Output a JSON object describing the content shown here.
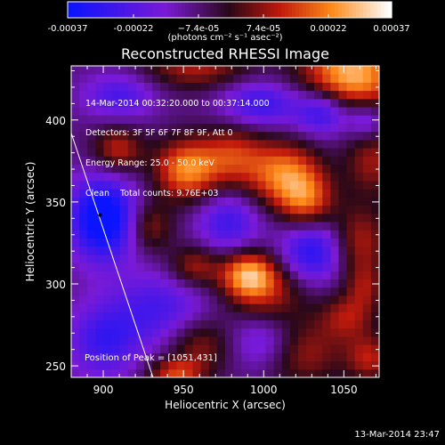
{
  "colorbar": {
    "tick_labels": [
      "-0.00037",
      "-0.00022",
      "−7.4e-05",
      "7.4e-05",
      "0.00022",
      "0.00037"
    ],
    "units": "(photons cm⁻² s⁻¹ asec⁻²)",
    "colors": [
      "#0a14ff",
      "#7a1ad6",
      "#2a0818",
      "#c21a0c",
      "#ff8a1a",
      "#ffffff"
    ]
  },
  "title": "Reconstructed RHESSI Image",
  "info_lines": [
    "14-Mar-2014 00:32:20.000 to 00:37:14.000",
    "Detectors: 3F 5F 6F 7F 8F 9F, Att 0",
    "Energy Range: 25.0 - 50.0 keV",
    "Clean    Total counts: 9.76E+03"
  ],
  "peak_text": "Position of Peak = [1051,431]",
  "footer": "13-Mar-2014 23:47",
  "chart_data": {
    "type": "heatmap",
    "title": "Reconstructed RHESSI Image",
    "xlabel": "Heliocentric X (arcsec)",
    "ylabel": "Heliocentric Y (arcsec)",
    "xlim": [
      880,
      1072
    ],
    "ylim": [
      243,
      433
    ],
    "xticks": [
      900,
      950,
      1000,
      1050
    ],
    "yticks": [
      250,
      300,
      350,
      400
    ],
    "colorbar_range": [
      -0.00037,
      0.00037
    ],
    "peak": {
      "x": 1051,
      "y": 431
    },
    "marker": {
      "x": 898,
      "y": 342
    },
    "limb": [
      {
        "x": 880,
        "y": 392
      },
      {
        "x": 931,
        "y": 243
      }
    ],
    "blobs": [
      {
        "x": 1055,
        "y": 428,
        "rx": 22,
        "ry": 15,
        "amp": 1.0
      },
      {
        "x": 958,
        "y": 433,
        "rx": 24,
        "ry": 10,
        "amp": 0.5
      },
      {
        "x": 1013,
        "y": 367,
        "rx": 16,
        "ry": 14,
        "amp": 0.8
      },
      {
        "x": 1027,
        "y": 350,
        "rx": 12,
        "ry": 12,
        "amp": 0.62
      },
      {
        "x": 981,
        "y": 378,
        "rx": 14,
        "ry": 14,
        "amp": 0.55
      },
      {
        "x": 952,
        "y": 370,
        "rx": 14,
        "ry": 13,
        "amp": 0.85
      },
      {
        "x": 909,
        "y": 382,
        "rx": 11,
        "ry": 10,
        "amp": 0.55
      },
      {
        "x": 929,
        "y": 335,
        "rx": 10,
        "ry": 11,
        "amp": 0.45
      },
      {
        "x": 1068,
        "y": 375,
        "rx": 12,
        "ry": 14,
        "amp": 0.45
      },
      {
        "x": 1060,
        "y": 326,
        "rx": 12,
        "ry": 16,
        "amp": 0.5
      },
      {
        "x": 1003,
        "y": 295,
        "rx": 18,
        "ry": 14,
        "amp": 0.45
      },
      {
        "x": 990,
        "y": 306,
        "rx": 12,
        "ry": 10,
        "amp": 0.85
      },
      {
        "x": 957,
        "y": 311,
        "rx": 11,
        "ry": 9,
        "amp": 0.5
      },
      {
        "x": 1052,
        "y": 280,
        "rx": 12,
        "ry": 10,
        "amp": 0.45
      },
      {
        "x": 1025,
        "y": 258,
        "rx": 18,
        "ry": 14,
        "amp": 0.45
      },
      {
        "x": 1066,
        "y": 255,
        "rx": 10,
        "ry": 10,
        "amp": 0.5
      },
      {
        "x": 960,
        "y": 263,
        "rx": 14,
        "ry": 12,
        "amp": 0.45
      },
      {
        "x": 945,
        "y": 246,
        "rx": 12,
        "ry": 6,
        "amp": 0.6
      },
      {
        "x": 1063,
        "y": 298,
        "rx": 8,
        "ry": 10,
        "amp": 0.35
      },
      {
        "x": 900,
        "y": 340,
        "rx": 15,
        "ry": 18,
        "amp": -0.95
      },
      {
        "x": 998,
        "y": 410,
        "rx": 18,
        "ry": 10,
        "amp": -0.55
      },
      {
        "x": 1037,
        "y": 405,
        "rx": 12,
        "ry": 10,
        "amp": -0.6
      },
      {
        "x": 910,
        "y": 415,
        "rx": 16,
        "ry": 10,
        "amp": -0.45
      },
      {
        "x": 1030,
        "y": 320,
        "rx": 14,
        "ry": 14,
        "amp": -0.65
      },
      {
        "x": 978,
        "y": 338,
        "rx": 14,
        "ry": 14,
        "amp": -0.5
      },
      {
        "x": 935,
        "y": 285,
        "rx": 22,
        "ry": 16,
        "amp": -0.45
      },
      {
        "x": 900,
        "y": 265,
        "rx": 16,
        "ry": 16,
        "amp": -0.5
      },
      {
        "x": 1000,
        "y": 265,
        "rx": 14,
        "ry": 12,
        "amp": -0.4
      },
      {
        "x": 1064,
        "y": 400,
        "rx": 8,
        "ry": 8,
        "amp": -0.4
      }
    ]
  }
}
